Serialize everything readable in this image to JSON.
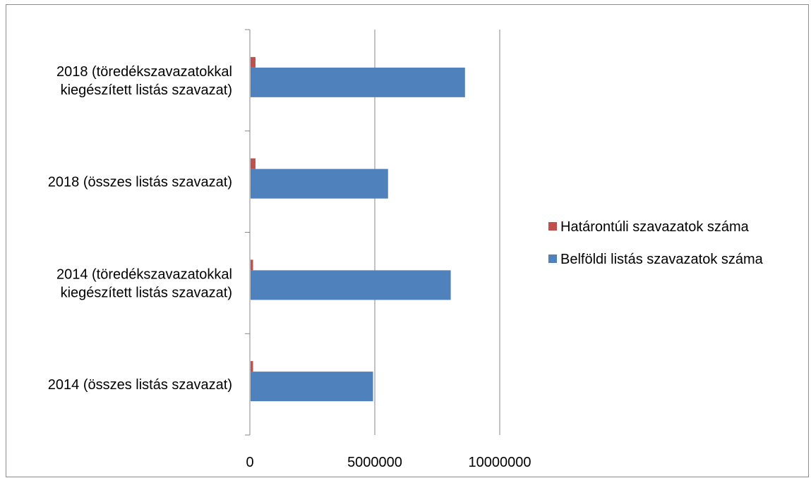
{
  "chart_data": {
    "type": "bar",
    "orientation": "horizontal",
    "categories": [
      [
        "2014 (összes listás szavazat)"
      ],
      [
        "2014 (töredékszavazatokkal",
        "kiegészített listás szavazat)"
      ],
      [
        "2018 (összes listás szavazat)"
      ],
      [
        "2018 (töredékszavazatokkal",
        "kiegészített listás szavazat)"
      ]
    ],
    "series": [
      {
        "name": "Határontúli szavazatok száma",
        "color": "#C0504D",
        "values": [
          128000,
          128000,
          225000,
          225000
        ]
      },
      {
        "name": "Belföldi listás szavazatok száma",
        "color": "#4F81BD",
        "values": [
          4930000,
          8040000,
          5530000,
          8610000
        ]
      }
    ],
    "xlim": [
      0,
      10000000
    ],
    "x_ticks": [
      {
        "value": 0,
        "label": "0"
      },
      {
        "value": 5000000,
        "label": "5000000"
      },
      {
        "value": 10000000,
        "label": "10000000"
      }
    ],
    "grid": true,
    "legend_position": "right",
    "title": "",
    "xlabel": "",
    "ylabel": ""
  }
}
